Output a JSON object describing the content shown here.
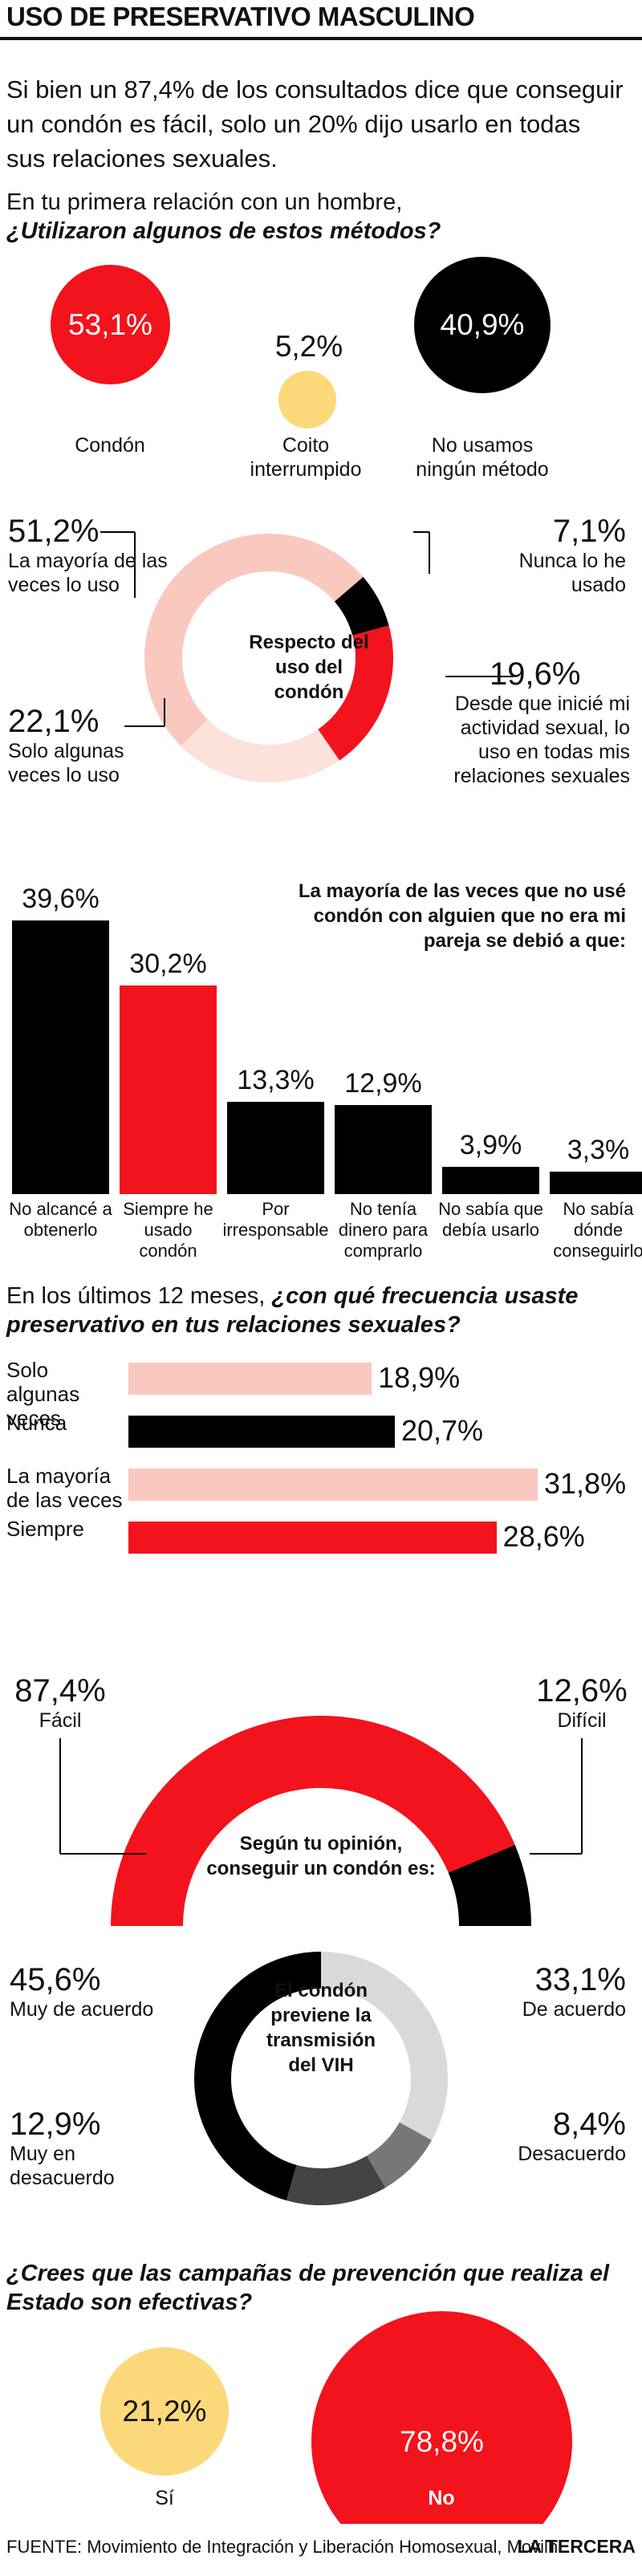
{
  "title": "USO DE PRESERVATIVO MASCULINO",
  "intro": "Si bien un 87,4% de los consultados dice que conseguir un condón es fácil, solo un 20% dijo usarlo en todas sus relaciones sexuales.",
  "q1": {
    "lead": "En tu primera relación con un hombre,",
    "question": "¿Utilizaron algunos de estos métodos?",
    "items": [
      {
        "value": "53,1%",
        "label": "Condón"
      },
      {
        "value": "5,2%",
        "label": "Coito interrumpido"
      },
      {
        "value": "40,9%",
        "label": "No usamos ningún método"
      }
    ]
  },
  "q2": {
    "center": "Respecto del uso del condón",
    "items": [
      {
        "value": "51,2%",
        "label": "La mayoría de las veces lo uso"
      },
      {
        "value": "7,1%",
        "label": "Nunca lo he usado"
      },
      {
        "value": "19,6%",
        "label": "Desde que inicié mi actividad sexual, lo uso en todas mis relaciones sexuales"
      },
      {
        "value": "22,1%",
        "label": "Solo algunas veces lo uso"
      }
    ]
  },
  "q3": {
    "heading": "La mayoría de las veces que no usé condón con alguien que no era mi pareja se debió a que:",
    "items": [
      {
        "value": "39,6%",
        "label": "No alcancé a obtenerlo"
      },
      {
        "value": "30,2%",
        "label": "Siempre he usado condón"
      },
      {
        "value": "13,3%",
        "label": "Por irresponsable"
      },
      {
        "value": "12,9%",
        "label": "No tenía dinero para comprarlo"
      },
      {
        "value": "3,9%",
        "label": "No sabía que debía usarlo"
      },
      {
        "value": "3,3%",
        "label": "No sabía dónde conseguirlo"
      }
    ]
  },
  "q4": {
    "lead": "En los últimos 12 meses,",
    "question": "¿con qué frecuencia usaste preservativo en tus relaciones sexuales?",
    "items": [
      {
        "value": "18,9%",
        "label": "Solo algunas veces"
      },
      {
        "value": "20,7%",
        "label": "Nunca"
      },
      {
        "value": "31,8%",
        "label": "La mayoría de las veces"
      },
      {
        "value": "28,6%",
        "label": "Siempre"
      }
    ]
  },
  "q5": {
    "center": "Según tu opinión, conseguir un condón es:",
    "items": [
      {
        "value": "87,4%",
        "label": "Fácil"
      },
      {
        "value": "12,6%",
        "label": "Difícil"
      }
    ]
  },
  "q6": {
    "center": "El condón previene la transmisión del VIH",
    "items": [
      {
        "value": "45,6%",
        "label": "Muy de acuerdo"
      },
      {
        "value": "33,1%",
        "label": "De acuerdo"
      },
      {
        "value": "12,9%",
        "label": "Muy en desacuerdo"
      },
      {
        "value": "8,4%",
        "label": "Desacuerdo"
      }
    ]
  },
  "q7": {
    "question": "¿Crees que las campañas de prevención que realiza el Estado son efectivas?",
    "items": [
      {
        "value": "21,2%",
        "label": "Sí"
      },
      {
        "value": "78,8%",
        "label": "No"
      }
    ]
  },
  "footer": {
    "source": "FUENTE: Movimiento de Integración y Liberación Homosexual, Movilh.",
    "brand": "LA TERCERA"
  },
  "colors": {
    "red": "#f2131c",
    "black": "#000000",
    "pink": "#f9c9c0",
    "yellow": "#fbd97a",
    "gray": "#d9d9d9",
    "darkgray": "#444444",
    "midgray": "#777777"
  },
  "chart_data": [
    {
      "type": "bubble",
      "series": [
        {
          "categories": [
            "Condón",
            "Coito interrumpido",
            "No usamos ningún método"
          ],
          "values": [
            53.1,
            5.2,
            40.9
          ]
        }
      ]
    },
    {
      "type": "pie",
      "categories": [
        "La mayoría de las veces lo uso",
        "Nunca lo he usado",
        "Desde que inicié mi actividad sexual, lo uso en todas mis relaciones sexuales",
        "Solo algunas veces lo uso"
      ],
      "values": [
        51.2,
        7.1,
        19.6,
        22.1
      ]
    },
    {
      "type": "bar",
      "categories": [
        "No alcancé a obtenerlo",
        "Siempre he usado condón",
        "Por irresponsable",
        "No tenía dinero para comprarlo",
        "No sabía que debía usarlo",
        "No sabía dónde conseguirlo"
      ],
      "values": [
        39.6,
        30.2,
        13.3,
        12.9,
        3.9,
        3.3
      ]
    },
    {
      "type": "bar",
      "orientation": "horizontal",
      "categories": [
        "Solo algunas veces",
        "Nunca",
        "La mayoría de las veces",
        "Siempre"
      ],
      "values": [
        18.9,
        20.7,
        31.8,
        28.6
      ]
    },
    {
      "type": "pie",
      "shape": "half-donut",
      "categories": [
        "Fácil",
        "Difícil"
      ],
      "values": [
        87.4,
        12.6
      ]
    },
    {
      "type": "pie",
      "categories": [
        "Muy de acuerdo",
        "De acuerdo",
        "Desacuerdo",
        "Muy en desacuerdo"
      ],
      "values": [
        45.6,
        33.1,
        8.4,
        12.9
      ]
    },
    {
      "type": "bubble",
      "categories": [
        "Sí",
        "No"
      ],
      "values": [
        21.2,
        78.8
      ]
    }
  ]
}
